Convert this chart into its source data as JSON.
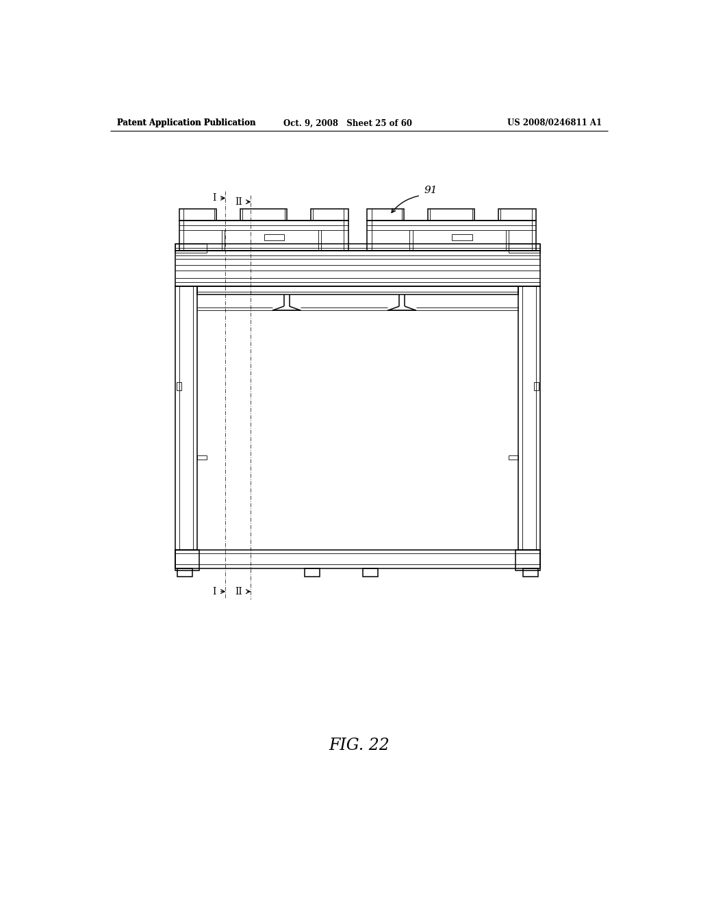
{
  "bg_color": "#ffffff",
  "line_color": "#000000",
  "header_left": "Patent Application Publication",
  "header_center": "Oct. 9, 2008   Sheet 25 of 60",
  "header_right": "US 2008/0246811 A1",
  "fig_label": "FIG. 22",
  "ref_num": "91",
  "lw_thin": 0.6,
  "lw_med": 1.1,
  "lw_thick": 1.8
}
